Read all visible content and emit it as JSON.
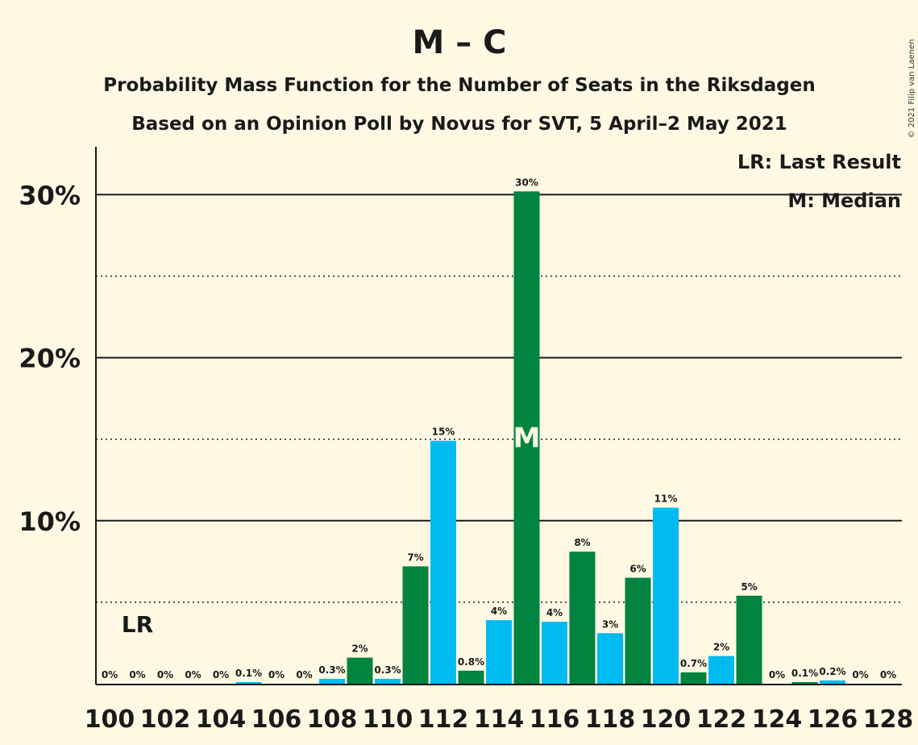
{
  "chart_data": {
    "type": "bar",
    "title": "M – C",
    "subtitle1": "Probability Mass Function for the Number of Seats in the Riksdagen",
    "subtitle2": "Based on an Opinion Poll by Novus for SVT, 5 April–2 May 2021",
    "copyright": "© 2021 Filip van Laenen",
    "legend": {
      "lr": "LR: Last Result",
      "median": "M: Median"
    },
    "lr_label": "LR",
    "last_result_seat": 101,
    "median_label": "M",
    "median_seat": 115,
    "ylim": [
      0,
      33
    ],
    "y_ticks": [
      {
        "value": 10,
        "label": "10%"
      },
      {
        "value": 20,
        "label": "20%"
      },
      {
        "value": 30,
        "label": "30%"
      }
    ],
    "y_minor_gridlines": [
      5,
      15,
      25
    ],
    "x_tick_labels": [
      "100",
      "102",
      "104",
      "106",
      "108",
      "110",
      "112",
      "114",
      "116",
      "118",
      "120",
      "122",
      "124",
      "126",
      "128"
    ],
    "colors": {
      "green": "#00843F",
      "blue": "#00BAF2",
      "background": "#FFF9E4",
      "text": "#1a1a1a"
    },
    "bars": [
      {
        "seat": 100,
        "value": 0,
        "label": "0%",
        "color": "green"
      },
      {
        "seat": 101,
        "value": 0,
        "label": "0%",
        "color": "blue"
      },
      {
        "seat": 102,
        "value": 0,
        "label": "0%",
        "color": "green"
      },
      {
        "seat": 103,
        "value": 0,
        "label": "0%",
        "color": "blue"
      },
      {
        "seat": 104,
        "value": 0,
        "label": "0%",
        "color": "green"
      },
      {
        "seat": 105,
        "value": 0.1,
        "label": "0.1%",
        "color": "blue"
      },
      {
        "seat": 106,
        "value": 0,
        "label": "0%",
        "color": "green"
      },
      {
        "seat": 107,
        "value": 0,
        "label": "0%",
        "color": "blue"
      },
      {
        "seat": 108,
        "value": 0.3,
        "label": "0.3%",
        "color": "blue"
      },
      {
        "seat": 109,
        "value": 1.6,
        "label": "2%",
        "color": "green"
      },
      {
        "seat": 110,
        "value": 0.3,
        "label": "0.3%",
        "color": "blue"
      },
      {
        "seat": 111,
        "value": 7.2,
        "label": "7%",
        "color": "green"
      },
      {
        "seat": 112,
        "value": 14.9,
        "label": "15%",
        "color": "blue"
      },
      {
        "seat": 113,
        "value": 0.8,
        "label": "0.8%",
        "color": "green"
      },
      {
        "seat": 114,
        "value": 3.9,
        "label": "4%",
        "color": "blue"
      },
      {
        "seat": 115,
        "value": 30.2,
        "label": "30%",
        "color": "green"
      },
      {
        "seat": 116,
        "value": 3.8,
        "label": "4%",
        "color": "blue"
      },
      {
        "seat": 117,
        "value": 8.1,
        "label": "8%",
        "color": "green"
      },
      {
        "seat": 118,
        "value": 3.1,
        "label": "3%",
        "color": "blue"
      },
      {
        "seat": 119,
        "value": 6.5,
        "label": "6%",
        "color": "green"
      },
      {
        "seat": 120,
        "value": 10.8,
        "label": "11%",
        "color": "blue"
      },
      {
        "seat": 121,
        "value": 0.7,
        "label": "0.7%",
        "color": "green"
      },
      {
        "seat": 122,
        "value": 1.7,
        "label": "2%",
        "color": "blue"
      },
      {
        "seat": 123,
        "value": 5.4,
        "label": "5%",
        "color": "green"
      },
      {
        "seat": 124,
        "value": 0,
        "label": "0%",
        "color": "blue"
      },
      {
        "seat": 125,
        "value": 0.1,
        "label": "0.1%",
        "color": "green"
      },
      {
        "seat": 126,
        "value": 0.2,
        "label": "0.2%",
        "color": "blue"
      },
      {
        "seat": 127,
        "value": 0,
        "label": "0%",
        "color": "green"
      },
      {
        "seat": 128,
        "value": 0,
        "label": "0%",
        "color": "blue"
      }
    ]
  }
}
